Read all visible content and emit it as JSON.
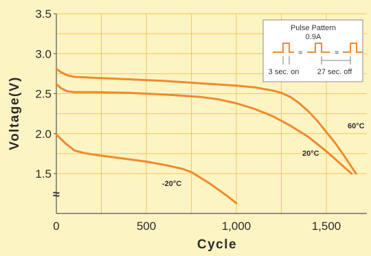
{
  "chart_data": {
    "type": "line",
    "title": "",
    "xlabel": "Cycle",
    "ylabel": "Voltage(V)",
    "xlim": [
      0,
      1750
    ],
    "ylim": [
      1.0,
      3.5
    ],
    "x_ticks": [
      0,
      500,
      1000,
      1500
    ],
    "x_tick_labels": [
      "0",
      "500",
      "1,000",
      "1,500"
    ],
    "y_ticks": [
      1.5,
      2.0,
      2.5,
      3.0,
      3.5
    ],
    "y_tick_labels": [
      "1.5",
      "2.0",
      "2.5",
      "3.0",
      "3.5"
    ],
    "axis_break_symbol": "≈",
    "grid": true,
    "colors": {
      "background": "#fdf4c4",
      "grid": "#f0c858",
      "axis": "#555555",
      "series": "#ef8a2c"
    },
    "series": [
      {
        "name": "60°C",
        "x": [
          0,
          25,
          60,
          100,
          200,
          400,
          600,
          800,
          1000,
          1100,
          1200,
          1250,
          1300,
          1350,
          1400,
          1450,
          1500,
          1550,
          1600,
          1650,
          1665
        ],
        "y": [
          2.81,
          2.77,
          2.73,
          2.71,
          2.7,
          2.68,
          2.66,
          2.63,
          2.6,
          2.58,
          2.54,
          2.51,
          2.46,
          2.38,
          2.28,
          2.16,
          2.02,
          1.88,
          1.72,
          1.55,
          1.5
        ]
      },
      {
        "name": "20°C",
        "x": [
          0,
          25,
          60,
          100,
          200,
          400,
          600,
          800,
          900,
          1000,
          1100,
          1200,
          1300,
          1400,
          1500,
          1550,
          1600,
          1640
        ],
        "y": [
          2.62,
          2.57,
          2.53,
          2.52,
          2.52,
          2.51,
          2.49,
          2.46,
          2.43,
          2.38,
          2.31,
          2.22,
          2.1,
          1.96,
          1.78,
          1.68,
          1.58,
          1.5
        ]
      },
      {
        "name": "-20°C",
        "x": [
          0,
          50,
          100,
          150,
          200,
          300,
          400,
          500,
          600,
          700,
          750,
          800,
          850,
          900,
          950,
          1000
        ],
        "y": [
          1.99,
          1.88,
          1.79,
          1.76,
          1.74,
          1.71,
          1.68,
          1.65,
          1.61,
          1.56,
          1.52,
          1.45,
          1.38,
          1.3,
          1.22,
          1.13
        ]
      }
    ],
    "inset": {
      "title": "Pulse Pattern",
      "current": "0.9A",
      "on_label": "3 sec. on",
      "off_label": "27 sec. off",
      "break_symbol": "≈"
    }
  }
}
